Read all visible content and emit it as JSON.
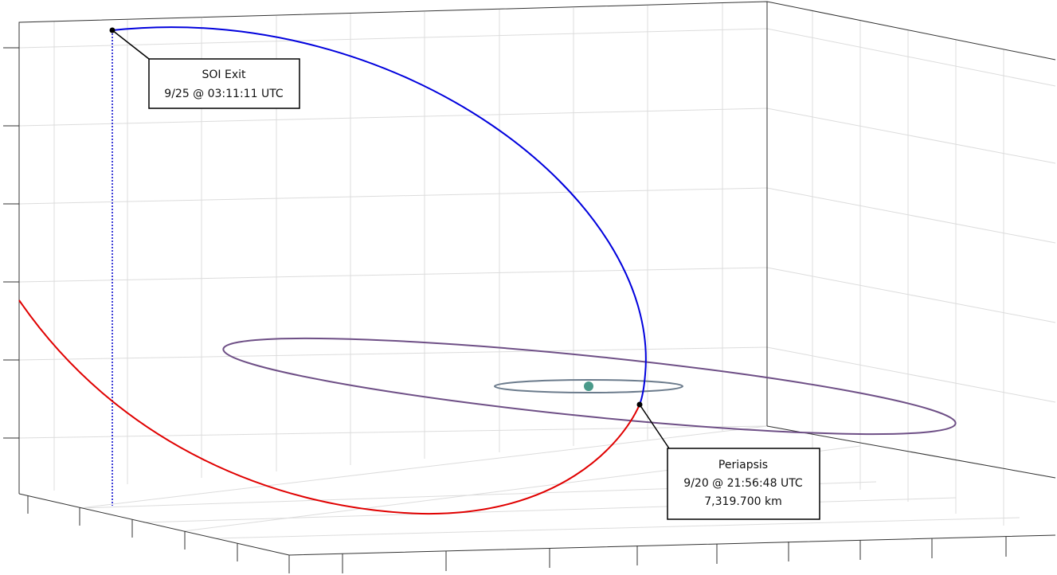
{
  "annotations": [
    {
      "lines": [
        "SOI Exit",
        "9/25 @ 03:11:11 UTC"
      ]
    },
    {
      "lines": [
        "Periapsis",
        "9/20 @ 21:56:48 UTC",
        "7,319.700 km"
      ]
    }
  ]
}
